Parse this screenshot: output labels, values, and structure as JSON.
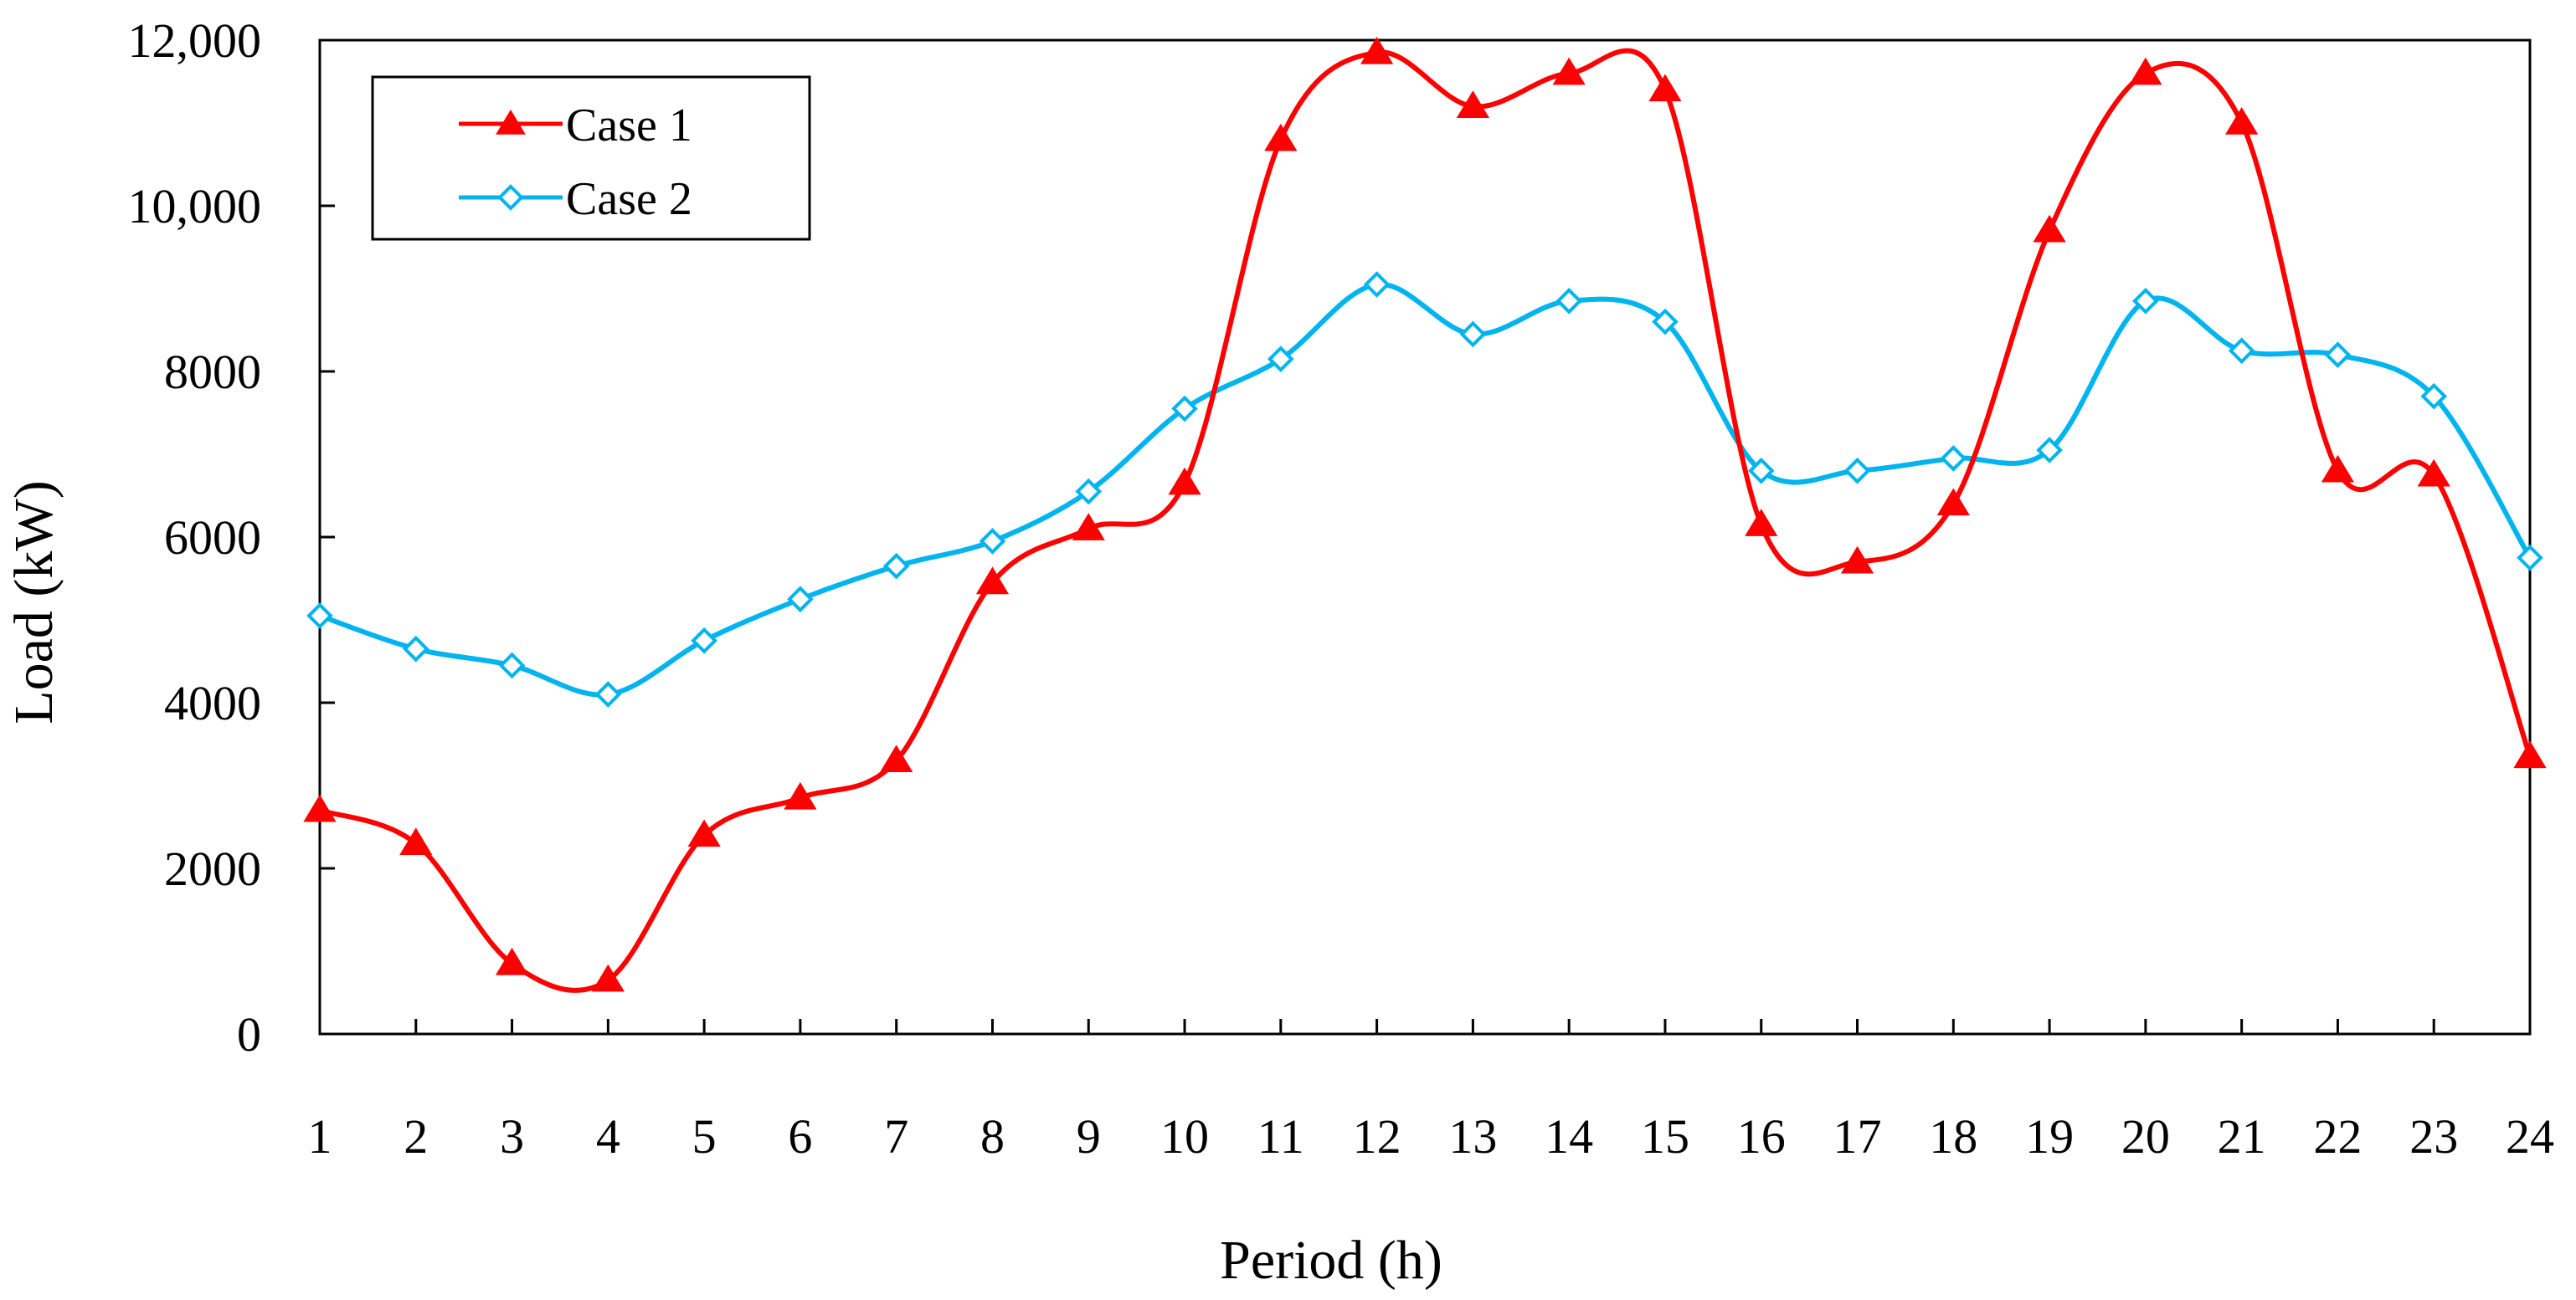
{
  "chart_data": {
    "type": "line",
    "title": "",
    "xlabel": "Period (h)",
    "ylabel": "Load (kW)",
    "x": [
      1,
      2,
      3,
      4,
      5,
      6,
      7,
      8,
      9,
      10,
      11,
      12,
      13,
      14,
      15,
      16,
      17,
      18,
      19,
      20,
      21,
      22,
      23,
      24
    ],
    "xlim": [
      1,
      24
    ],
    "ylim": [
      0,
      12000
    ],
    "yticks": [
      0,
      2000,
      4000,
      6000,
      8000,
      10000,
      12000
    ],
    "ytick_labels": [
      "0",
      "2000",
      "4000",
      "6000",
      "8000",
      "10,000",
      "12,000"
    ],
    "xtick_labels": [
      "1",
      "2",
      "3",
      "4",
      "5",
      "6",
      "7",
      "8",
      "9",
      "10",
      "11",
      "12",
      "13",
      "14",
      "15",
      "16",
      "17",
      "18",
      "19",
      "20",
      "21",
      "22",
      "23",
      "24"
    ],
    "grid": false,
    "legend_position": "top-left",
    "series": [
      {
        "name": "Case 1",
        "color": "#ff0000",
        "marker": "triangle",
        "values": [
          2700,
          2300,
          850,
          650,
          2400,
          2850,
          3300,
          5450,
          6100,
          6650,
          10800,
          11850,
          11200,
          11600,
          11400,
          6150,
          5700,
          6400,
          9700,
          11600,
          11000,
          6800,
          6750,
          3350
        ]
      },
      {
        "name": "Case 2",
        "color": "#00b4f0",
        "marker": "diamond",
        "values": [
          5050,
          4650,
          4450,
          4100,
          4750,
          5250,
          5650,
          5950,
          6550,
          7550,
          8150,
          9050,
          8450,
          8850,
          8600,
          6800,
          6800,
          6950,
          7050,
          8850,
          8250,
          8200,
          7700,
          5750
        ]
      }
    ]
  }
}
